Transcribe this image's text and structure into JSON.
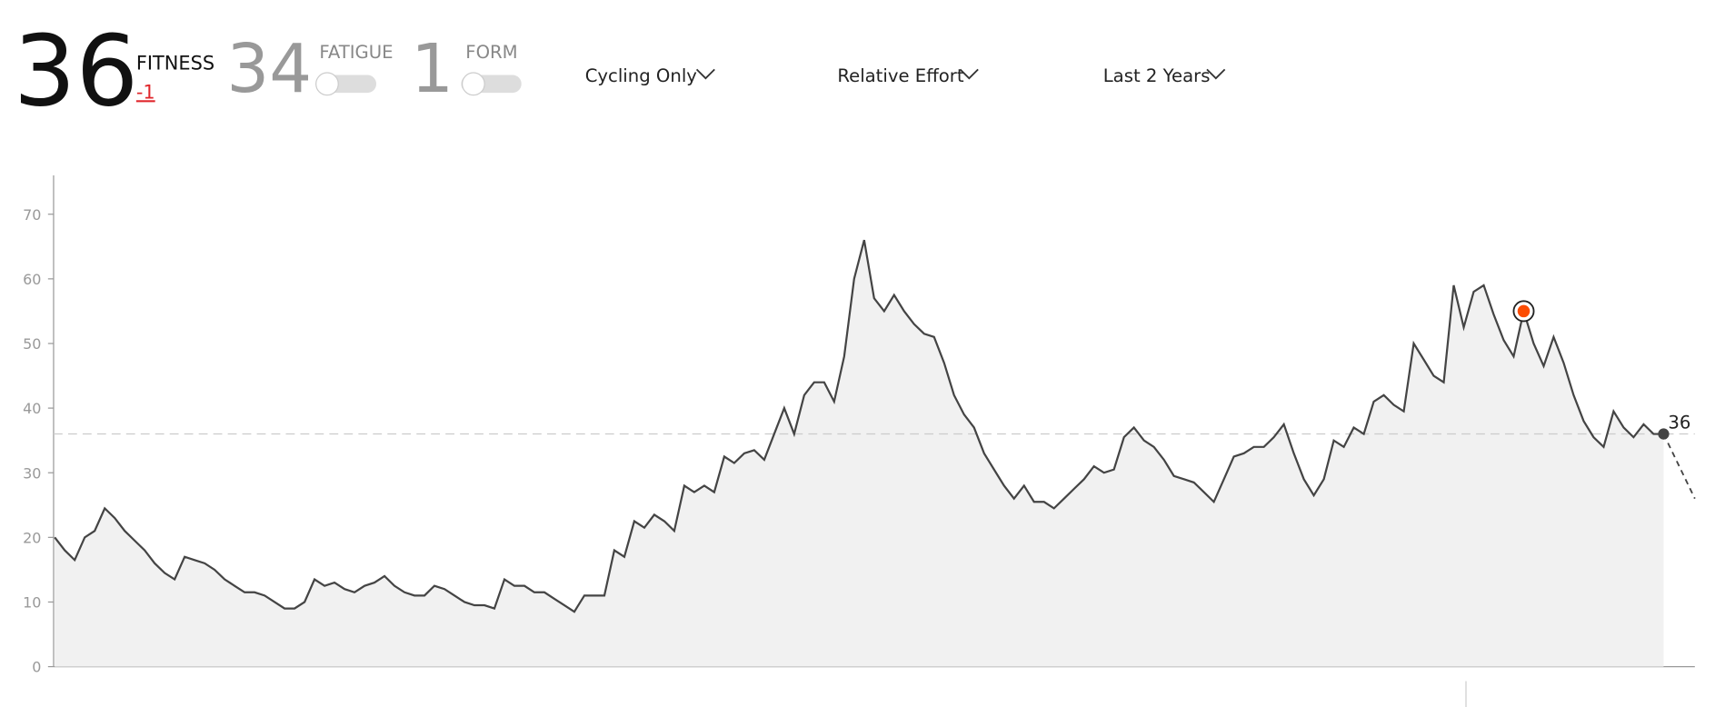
{
  "header": {
    "fitness_value": 36,
    "fitness_label": "FITNESS",
    "fitness_change": -1,
    "fatigue_value": 34,
    "fatigue_label": "FATIGUE",
    "form_value": 1,
    "form_label": "FORM",
    "filters": [
      "Cycling Only",
      "Relative Effort",
      "Last 2 Years"
    ]
  },
  "chart_data": {
    "type": "line",
    "color": "#444444",
    "fill": "#f1f1f1",
    "values": [
      20,
      18,
      16.5,
      20,
      21,
      24.5,
      23,
      21,
      19.5,
      18,
      16,
      14.5,
      13.5,
      17,
      16.5,
      16,
      15,
      13.5,
      12.5,
      11.5,
      11.5,
      11,
      10,
      9,
      9,
      10,
      13.5,
      12.5,
      13,
      12,
      11.5,
      12.5,
      13,
      14,
      12.5,
      11.5,
      11,
      11,
      12.5,
      12,
      11,
      10,
      9.5,
      9.5,
      9,
      13.5,
      12.5,
      12.5,
      11.5,
      11.5,
      10.5,
      9.5,
      8.5,
      11,
      11,
      11,
      18,
      17,
      22.5,
      21.5,
      23.5,
      22.5,
      21,
      28,
      27,
      28,
      27,
      32.5,
      31.5,
      33,
      33.5,
      32,
      36,
      40,
      36,
      42,
      44,
      44,
      41,
      48,
      60,
      66,
      57,
      55,
      57.5,
      55,
      53,
      51.5,
      51,
      47,
      42,
      39,
      37,
      33,
      30.5,
      28,
      26,
      28,
      25.5,
      25.5,
      24.5,
      26,
      27.5,
      29,
      31,
      30,
      30.5,
      35.5,
      37,
      35,
      34,
      32,
      29.5,
      29,
      28.5,
      27,
      25.5,
      29,
      32.5,
      33,
      34,
      34,
      35.5,
      37.5,
      33,
      29,
      26.5,
      29,
      35,
      34,
      37,
      36,
      41,
      42,
      40.5,
      39.5,
      50,
      47.5,
      45,
      44,
      59,
      52.5,
      58,
      59,
      54.5,
      50.5,
      48,
      55,
      50,
      46.5,
      51,
      47,
      42,
      38,
      35.5,
      34,
      39.5,
      37,
      35.5,
      37.5,
      36,
      36
    ],
    "projection": [
      36,
      26
    ],
    "reference_line": 36,
    "highlight": {
      "value": 55,
      "color": "#fc4c02"
    },
    "ylim": [
      0,
      76
    ],
    "yticks": [
      0,
      10,
      20,
      30,
      40,
      50,
      60,
      70
    ],
    "grid": false
  }
}
